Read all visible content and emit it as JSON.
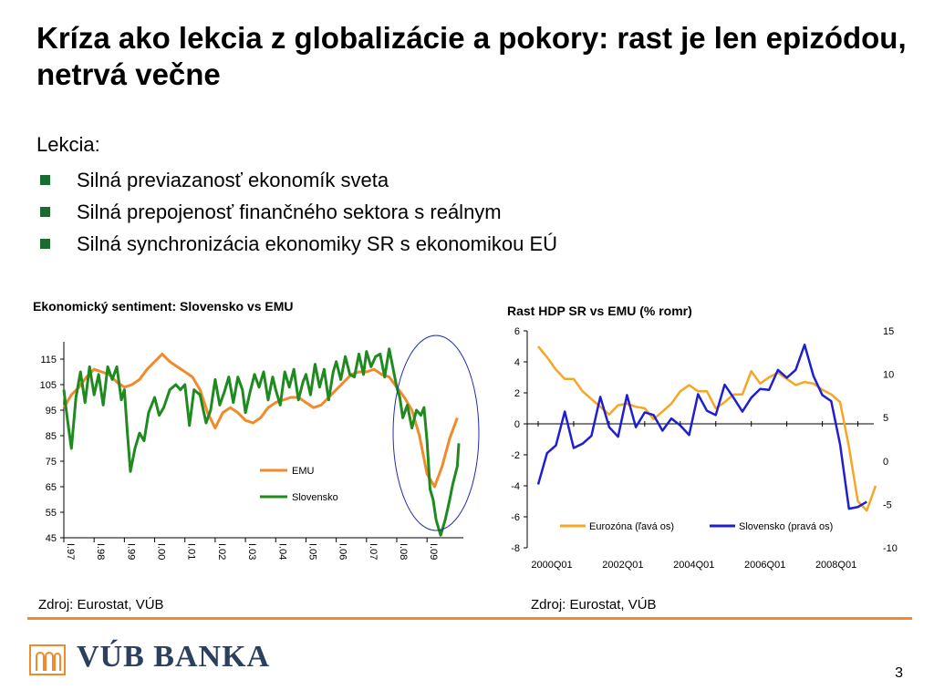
{
  "slide": {
    "title": "Kríza ako lekcia z globalizácie a pokory: rast je len epizódou, netrvá večne",
    "lekcia": "Lekcia:",
    "bullets": [
      "Silná previazanosť ekonomík sveta",
      "Silná prepojenosť finančného sektora s reálnym",
      "Silná synchronizácia ekonomiky SR s ekonomikou EÚ"
    ],
    "source_left": "Zdroj: Eurostat, VÚB",
    "source_right": "Zdroj: Eurostat, VÚB",
    "logo_text": "VÚB BANKA",
    "page_number": "3",
    "colors": {
      "accent": "#f08a2a",
      "bullet": "#1a6b2f",
      "logo": "#2b3f5f"
    }
  },
  "chart_data": [
    {
      "type": "line",
      "title": "Ekonomický sentiment: Slovensko vs EMU",
      "ylim": [
        45,
        120
      ],
      "yticks": [
        45,
        55,
        65,
        75,
        85,
        95,
        105,
        115
      ],
      "xlim": [
        1997,
        2010.2
      ],
      "xticks": [
        {
          "label": "I.97",
          "x": 1997
        },
        {
          "label": "I.98",
          "x": 1998
        },
        {
          "label": "I.99",
          "x": 1999
        },
        {
          "label": "I.00",
          "x": 2000
        },
        {
          "label": "I.01",
          "x": 2001
        },
        {
          "label": "I.02",
          "x": 2002
        },
        {
          "label": "I.03",
          "x": 2003
        },
        {
          "label": "I.04",
          "x": 2004
        },
        {
          "label": "I.05",
          "x": 2005
        },
        {
          "label": "I.06",
          "x": 2006
        },
        {
          "label": "I.07",
          "x": 2007
        },
        {
          "label": "I.08",
          "x": 2008
        },
        {
          "label": "I.09",
          "x": 2009
        }
      ],
      "legend": "bottom-right",
      "series": [
        {
          "name": "EMU",
          "color": "#f08a2a",
          "x": [
            1997,
            1997.25,
            1997.5,
            1997.75,
            1998,
            1998.25,
            1998.5,
            1998.75,
            1999,
            1999.25,
            1999.5,
            1999.75,
            2000,
            2000.25,
            2000.5,
            2000.75,
            2001,
            2001.25,
            2001.5,
            2001.75,
            2002,
            2002.25,
            2002.5,
            2002.75,
            2003,
            2003.25,
            2003.5,
            2003.75,
            2004,
            2004.25,
            2004.5,
            2004.75,
            2005,
            2005.25,
            2005.5,
            2005.75,
            2006,
            2006.25,
            2006.5,
            2006.75,
            2007,
            2007.25,
            2007.5,
            2007.75,
            2008,
            2008.25,
            2008.5,
            2008.75,
            2009,
            2009.25,
            2009.5,
            2009.75,
            2010
          ],
          "values": [
            96,
            101,
            104,
            108,
            111,
            110,
            109,
            106,
            104,
            105,
            107,
            111,
            114,
            117,
            114,
            112,
            110,
            108,
            103,
            94,
            88,
            94,
            96,
            94,
            91,
            90,
            92,
            96,
            98,
            99,
            100,
            100,
            98,
            96,
            97,
            100,
            103,
            106,
            109,
            110,
            110,
            111,
            109,
            108,
            104,
            100,
            95,
            85,
            70,
            65,
            73,
            84,
            92
          ]
        },
        {
          "name": "Slovensko",
          "color": "#1f8a1f",
          "x": [
            1997,
            1997.1,
            1997.25,
            1997.4,
            1997.55,
            1997.7,
            1997.85,
            1998,
            1998.15,
            1998.3,
            1998.45,
            1998.6,
            1998.75,
            1998.9,
            1999,
            1999.1,
            1999.2,
            1999.35,
            1999.5,
            1999.65,
            1999.8,
            2000,
            2000.15,
            2000.3,
            2000.5,
            2000.7,
            2000.85,
            2001,
            2001.15,
            2001.3,
            2001.5,
            2001.7,
            2001.85,
            2002,
            2002.15,
            2002.3,
            2002.45,
            2002.6,
            2002.75,
            2002.9,
            2003,
            2003.15,
            2003.3,
            2003.45,
            2003.6,
            2003.75,
            2003.9,
            2004,
            2004.15,
            2004.3,
            2004.45,
            2004.6,
            2004.75,
            2004.9,
            2005,
            2005.15,
            2005.3,
            2005.45,
            2005.6,
            2005.75,
            2005.9,
            2006,
            2006.15,
            2006.3,
            2006.45,
            2006.6,
            2006.75,
            2006.9,
            2007,
            2007.15,
            2007.3,
            2007.45,
            2007.6,
            2007.75,
            2007.9,
            2008,
            2008.1,
            2008.2,
            2008.35,
            2008.5,
            2008.65,
            2008.8,
            2008.9,
            2009,
            2009.1,
            2009.2,
            2009.3,
            2009.45,
            2009.6,
            2009.75,
            2009.85,
            2010,
            2010.05
          ],
          "values": [
            103,
            93,
            80,
            100,
            110,
            98,
            112,
            101,
            109,
            97,
            112,
            107,
            112,
            99,
            103,
            86,
            71,
            80,
            86,
            83,
            94,
            100,
            93,
            96,
            103,
            105,
            103,
            105,
            89,
            103,
            101,
            90,
            95,
            107,
            97,
            102,
            108,
            98,
            108,
            103,
            94,
            102,
            109,
            104,
            110,
            99,
            108,
            103,
            97,
            110,
            104,
            111,
            99,
            106,
            109,
            101,
            113,
            104,
            111,
            99,
            110,
            114,
            107,
            116,
            109,
            108,
            117,
            109,
            118,
            112,
            116,
            117,
            108,
            119,
            110,
            104,
            100,
            92,
            97,
            88,
            95,
            93,
            96,
            83,
            64,
            60,
            52,
            46,
            52,
            60,
            66,
            73,
            82
          ]
        }
      ]
    },
    {
      "type": "line",
      "title": "Rast HDP SR vs EMU (% romr)",
      "xticks": [
        "2000Q01",
        "2002Q01",
        "2004Q01",
        "2006Q01",
        "2008Q01"
      ],
      "y_left": {
        "ylim": [
          -8,
          6
        ],
        "ticks": [
          -8,
          -6,
          -4,
          -2,
          0,
          2,
          4,
          6
        ]
      },
      "y_right": {
        "ylim": [
          -10,
          15
        ],
        "ticks": [
          -10,
          -5,
          0,
          5,
          10,
          15
        ]
      },
      "legend": "bottom",
      "series": [
        {
          "name": "Eurozóna (ľavá  os)",
          "color": "#f5a623",
          "axis": "left",
          "values": [
            5.0,
            4.3,
            3.5,
            2.9,
            2.9,
            2.1,
            1.6,
            1.1,
            0.6,
            1.2,
            1.3,
            1.1,
            1.0,
            0.3,
            0.8,
            1.3,
            2.1,
            2.5,
            2.1,
            2.1,
            1.0,
            1.4,
            1.9,
            1.9,
            3.4,
            2.6,
            3.0,
            3.3,
            2.9,
            2.5,
            2.7,
            2.6,
            2.2,
            1.9,
            1.4,
            -1.5,
            -5.0,
            -5.6,
            -4.0
          ]
        },
        {
          "name": "Slovensko (pravá os)",
          "color": "#1f1fd0",
          "axis": "right",
          "values": [
            -2.7,
            0.9,
            1.8,
            5.7,
            1.5,
            2.0,
            2.9,
            7.4,
            3.9,
            2.8,
            7.6,
            3.9,
            5.6,
            5.3,
            3.5,
            4.9,
            4.1,
            3.0,
            7.7,
            5.8,
            5.3,
            8.8,
            7.3,
            5.7,
            7.3,
            8.3,
            8.2,
            10.5,
            9.6,
            10.5,
            13.4,
            9.8,
            7.6,
            6.9,
            1.9,
            -5.5,
            -5.3,
            -4.7
          ]
        }
      ]
    }
  ]
}
